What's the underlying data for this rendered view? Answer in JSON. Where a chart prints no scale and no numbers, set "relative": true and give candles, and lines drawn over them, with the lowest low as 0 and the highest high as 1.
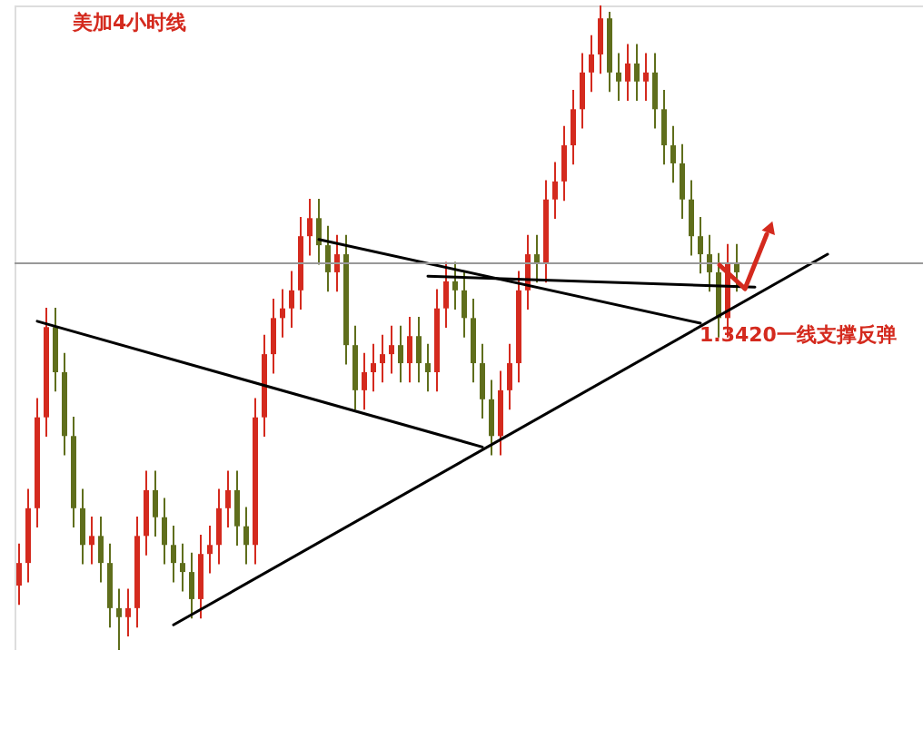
{
  "chart_data": {
    "type": "candlestick",
    "title": "美加4小时线",
    "relative": true,
    "categories": [
      null,
      null,
      null,
      null,
      null,
      null,
      null,
      null,
      null,
      null,
      null,
      null,
      null,
      null,
      null,
      null,
      null,
      null,
      null,
      null,
      null,
      null,
      null,
      null,
      null,
      null,
      null,
      null,
      null,
      null,
      null,
      null,
      null,
      null,
      null,
      null,
      null,
      null,
      null,
      null,
      null,
      null,
      null,
      null,
      null,
      null,
      null,
      null,
      null,
      null,
      null,
      null,
      null,
      null,
      null,
      null,
      null,
      null,
      null,
      null,
      null,
      null,
      null,
      null,
      null,
      null,
      null,
      null,
      null,
      null,
      null,
      null,
      null,
      null,
      null,
      null,
      null,
      null,
      null,
      null,
      null,
      null,
      null,
      null,
      null,
      null,
      null,
      null,
      null,
      null,
      null,
      null,
      null,
      null,
      null,
      null,
      null,
      null,
      null,
      null
    ],
    "series": [
      {
        "colors": [
          "#d42a1e",
          "#d42a1e",
          "#d42a1e",
          "#d42a1e",
          "#5f6e1c",
          "#5f6e1c",
          "#5f6e1c",
          "#5f6e1c",
          "#d42a1e",
          "#5f6e1c",
          "#5f6e1c",
          "#5f6e1c",
          "#d42a1e",
          "#d42a1e",
          "#d42a1e",
          "#5f6e1c",
          "#5f6e1c",
          "#5f6e1c",
          "#5f6e1c",
          "#5f6e1c",
          "#d42a1e",
          "#d42a1e",
          "#d42a1e",
          "#d42a1e",
          "#5f6e1c",
          "#5f6e1c",
          "#d42a1e",
          "#d42a1e",
          "#d42a1e",
          "#d42a1e",
          "#d42a1e",
          "#d42a1e",
          "#d42a1e",
          "#5f6e1c",
          "#5f6e1c",
          "#d42a1e",
          "#5f6e1c",
          "#5f6e1c",
          "#d42a1e",
          "#d42a1e",
          "#d42a1e",
          "#d42a1e",
          "#5f6e1c",
          "#d42a1e",
          "#5f6e1c",
          "#5f6e1c",
          "#d42a1e",
          "#d42a1e",
          "#5f6e1c",
          "#5f6e1c",
          "#5f6e1c",
          "#5f6e1c",
          "#5f6e1c",
          "#d42a1e",
          "#d42a1e",
          "#d42a1e",
          "#d42a1e",
          "#5f6e1c",
          "#d42a1e",
          "#d42a1e",
          "#d42a1e",
          "#d42a1e",
          "#d42a1e",
          "#d42a1e",
          "#d42a1e",
          "#5f6e1c",
          "#5f6e1c",
          "#d42a1e",
          "#5f6e1c",
          "#d42a1e",
          "#5f6e1c",
          "#5f6e1c",
          "#5f6e1c",
          "#5f6e1c",
          "#5f6e1c",
          "#5f6e1c",
          "#5f6e1c",
          "#5f6e1c",
          "#d42a1e",
          "#5f6e1c",
          null,
          null,
          null,
          null,
          null,
          null,
          null,
          null,
          null,
          null,
          null,
          null,
          null,
          null,
          null,
          null,
          null,
          null,
          null,
          null
        ],
        "ohlc": [
          [
            0.1,
            0.165,
            0.07,
            0.135
          ],
          [
            0.135,
            0.25,
            0.105,
            0.22
          ],
          [
            0.22,
            0.391,
            0.19,
            0.361
          ],
          [
            0.361,
            0.531,
            0.331,
            0.501
          ],
          [
            0.501,
            0.531,
            0.401,
            0.431
          ],
          [
            0.431,
            0.461,
            0.302,
            0.332
          ],
          [
            0.332,
            0.362,
            0.19,
            0.22
          ],
          [
            0.22,
            0.25,
            0.133,
            0.163
          ],
          [
            0.163,
            0.207,
            0.133,
            0.177
          ],
          [
            0.177,
            0.207,
            0.105,
            0.135
          ],
          [
            0.135,
            0.165,
            0.035,
            0.065
          ],
          [
            0.065,
            0.095,
            0.0,
            0.051
          ],
          [
            0.051,
            0.095,
            0.021,
            0.065
          ],
          [
            0.065,
            0.207,
            0.035,
            0.177
          ],
          [
            0.177,
            0.278,
            0.147,
            0.248
          ],
          [
            0.248,
            0.278,
            0.176,
            0.206
          ],
          [
            0.206,
            0.236,
            0.133,
            0.163
          ],
          [
            0.163,
            0.193,
            0.105,
            0.135
          ],
          [
            0.135,
            0.165,
            0.091,
            0.121
          ],
          [
            0.121,
            0.151,
            0.049,
            0.079
          ],
          [
            0.079,
            0.179,
            0.049,
            0.149
          ],
          [
            0.149,
            0.193,
            0.119,
            0.163
          ],
          [
            0.163,
            0.25,
            0.133,
            0.22
          ],
          [
            0.22,
            0.278,
            0.19,
            0.248
          ],
          [
            0.248,
            0.278,
            0.162,
            0.192
          ],
          [
            0.192,
            0.222,
            0.133,
            0.163
          ],
          [
            0.163,
            0.391,
            0.133,
            0.361
          ],
          [
            0.361,
            0.489,
            0.331,
            0.459
          ],
          [
            0.459,
            0.545,
            0.429,
            0.515
          ],
          [
            0.515,
            0.56,
            0.485,
            0.53
          ],
          [
            0.53,
            0.588,
            0.5,
            0.558
          ],
          [
            0.558,
            0.672,
            0.528,
            0.642
          ],
          [
            0.642,
            0.7,
            0.612,
            0.67
          ],
          [
            0.67,
            0.7,
            0.598,
            0.628
          ],
          [
            0.628,
            0.658,
            0.556,
            0.586
          ],
          [
            0.586,
            0.644,
            0.556,
            0.614
          ],
          [
            0.614,
            0.644,
            0.443,
            0.473
          ],
          [
            0.473,
            0.503,
            0.373,
            0.403
          ],
          [
            0.403,
            0.461,
            0.373,
            0.431
          ],
          [
            0.431,
            0.475,
            0.401,
            0.445
          ],
          [
            0.445,
            0.489,
            0.415,
            0.459
          ],
          [
            0.459,
            0.503,
            0.429,
            0.473
          ],
          [
            0.473,
            0.503,
            0.415,
            0.445
          ],
          [
            0.445,
            0.517,
            0.415,
            0.487
          ],
          [
            0.487,
            0.517,
            0.415,
            0.445
          ],
          [
            0.445,
            0.475,
            0.401,
            0.431
          ],
          [
            0.431,
            0.56,
            0.401,
            0.53
          ],
          [
            0.53,
            0.602,
            0.5,
            0.572
          ],
          [
            0.572,
            0.602,
            0.528,
            0.558
          ],
          [
            0.558,
            0.588,
            0.485,
            0.515
          ],
          [
            0.515,
            0.545,
            0.415,
            0.445
          ],
          [
            0.445,
            0.475,
            0.359,
            0.389
          ],
          [
            0.389,
            0.419,
            0.302,
            0.332
          ],
          [
            0.332,
            0.433,
            0.302,
            0.403
          ],
          [
            0.403,
            0.475,
            0.373,
            0.445
          ],
          [
            0.445,
            0.588,
            0.415,
            0.558
          ],
          [
            0.558,
            0.644,
            0.528,
            0.614
          ],
          [
            0.614,
            0.644,
            0.57,
            0.6
          ],
          [
            0.6,
            0.729,
            0.57,
            0.699
          ],
          [
            0.699,
            0.757,
            0.669,
            0.727
          ],
          [
            0.727,
            0.813,
            0.697,
            0.783
          ],
          [
            0.783,
            0.869,
            0.753,
            0.839
          ],
          [
            0.839,
            0.926,
            0.809,
            0.896
          ],
          [
            0.896,
            0.954,
            0.866,
            0.924
          ],
          [
            0.924,
            1.0,
            0.894,
            0.98
          ],
          [
            0.98,
            0.99,
            0.866,
            0.896
          ],
          [
            0.896,
            0.926,
            0.852,
            0.882
          ],
          [
            0.882,
            0.94,
            0.852,
            0.91
          ],
          [
            0.91,
            0.94,
            0.852,
            0.882
          ],
          [
            0.882,
            0.926,
            0.852,
            0.896
          ],
          [
            0.896,
            0.926,
            0.809,
            0.839
          ],
          [
            0.839,
            0.869,
            0.753,
            0.783
          ],
          [
            0.783,
            0.813,
            0.725,
            0.755
          ],
          [
            0.755,
            0.785,
            0.669,
            0.699
          ],
          [
            0.699,
            0.729,
            0.612,
            0.642
          ],
          [
            0.642,
            0.672,
            0.584,
            0.614
          ],
          [
            0.614,
            0.644,
            0.556,
            0.586
          ],
          [
            0.586,
            0.616,
            0.485,
            0.515
          ],
          [
            0.515,
            0.63,
            0.485,
            0.6
          ],
          [
            0.6,
            0.63,
            0.556,
            0.586
          ],
          null,
          null,
          null,
          null,
          null,
          null,
          null,
          null,
          null,
          null,
          null,
          null,
          null,
          null,
          null,
          null,
          null,
          null,
          null,
          null
        ]
      },
      {
        "type": "line",
        "color": "#000000",
        "values": [
          null,
          null,
          0.51,
          null,
          null,
          null,
          null,
          null,
          null,
          null,
          null,
          null,
          null,
          null,
          null,
          null,
          null,
          null,
          null,
          null,
          null,
          null,
          null,
          null,
          null,
          null,
          null,
          null,
          null,
          null,
          null,
          null,
          null,
          null,
          null,
          null,
          null,
          null,
          null,
          null,
          null,
          null,
          null,
          null,
          null,
          null,
          null,
          null,
          null,
          null,
          null,
          0.315,
          null,
          null,
          null,
          null,
          null,
          null,
          null,
          null,
          null,
          null,
          null,
          null,
          null,
          null,
          null,
          null,
          null,
          null,
          null,
          null,
          null,
          null,
          null,
          null,
          null,
          null,
          null,
          null,
          null,
          null,
          null,
          null,
          null,
          null,
          null,
          null,
          null,
          null,
          null,
          null,
          null,
          null,
          null,
          null,
          null,
          null,
          null,
          null
        ]
      },
      {
        "type": "line",
        "color": "#000000",
        "values": [
          null,
          null,
          null,
          null,
          null,
          null,
          null,
          null,
          null,
          null,
          null,
          null,
          null,
          null,
          null,
          null,
          null,
          null,
          null,
          null,
          null,
          null,
          null,
          null,
          null,
          null,
          null,
          null,
          null,
          null,
          null,
          null,
          null,
          0.637,
          null,
          null,
          null,
          null,
          null,
          null,
          null,
          null,
          null,
          null,
          null,
          null,
          null,
          null,
          null,
          null,
          null,
          null,
          null,
          null,
          null,
          null,
          null,
          null,
          null,
          null,
          null,
          null,
          null,
          null,
          null,
          null,
          null,
          null,
          null,
          null,
          null,
          null,
          null,
          null,
          null,
          0.507,
          null,
          null,
          null,
          null,
          null,
          null,
          null,
          null,
          null,
          null,
          null,
          null,
          null,
          null,
          null,
          null,
          null,
          null,
          null,
          null,
          null,
          null,
          null,
          null
        ]
      },
      {
        "type": "line",
        "color": "#000000",
        "values": [
          null,
          null,
          null,
          null,
          null,
          null,
          null,
          null,
          null,
          null,
          null,
          null,
          null,
          null,
          null,
          null,
          null,
          null,
          null,
          null,
          null,
          null,
          null,
          null,
          null,
          null,
          null,
          null,
          null,
          null,
          null,
          null,
          null,
          null,
          null,
          null,
          null,
          null,
          null,
          null,
          null,
          null,
          null,
          null,
          null,
          0.58,
          null,
          null,
          null,
          null,
          null,
          null,
          null,
          null,
          null,
          null,
          null,
          null,
          null,
          null,
          null,
          null,
          null,
          null,
          null,
          null,
          null,
          null,
          null,
          null,
          null,
          null,
          null,
          null,
          null,
          null,
          null,
          null,
          null,
          null,
          null,
          0.563,
          null,
          null,
          null,
          null,
          null,
          null,
          null,
          null,
          null,
          null,
          null,
          null,
          null,
          null,
          null,
          null,
          null,
          null
        ]
      },
      {
        "type": "line",
        "color": "#000000",
        "values": [
          null,
          null,
          null,
          null,
          null,
          null,
          null,
          null,
          null,
          null,
          null,
          null,
          null,
          null,
          null,
          null,
          null,
          0.039,
          null,
          null,
          null,
          null,
          null,
          null,
          null,
          null,
          null,
          null,
          null,
          null,
          null,
          null,
          null,
          null,
          null,
          null,
          null,
          null,
          null,
          null,
          null,
          null,
          null,
          null,
          null,
          null,
          null,
          null,
          null,
          null,
          null,
          null,
          null,
          null,
          null,
          null,
          null,
          null,
          null,
          null,
          null,
          null,
          null,
          null,
          null,
          null,
          null,
          null,
          null,
          null,
          null,
          null,
          null,
          null,
          null,
          null,
          null,
          null,
          null,
          null,
          null,
          null,
          null,
          null,
          null,
          null,
          null,
          null,
          null,
          0.614,
          null,
          null,
          null,
          null,
          null,
          null,
          null,
          null,
          null,
          null
        ]
      }
    ],
    "ref_lines": [
      {
        "axis": "y",
        "value": 0.6,
        "color": "#999999"
      }
    ],
    "annotations": [
      "1.3420一线支撑反弹"
    ]
  }
}
